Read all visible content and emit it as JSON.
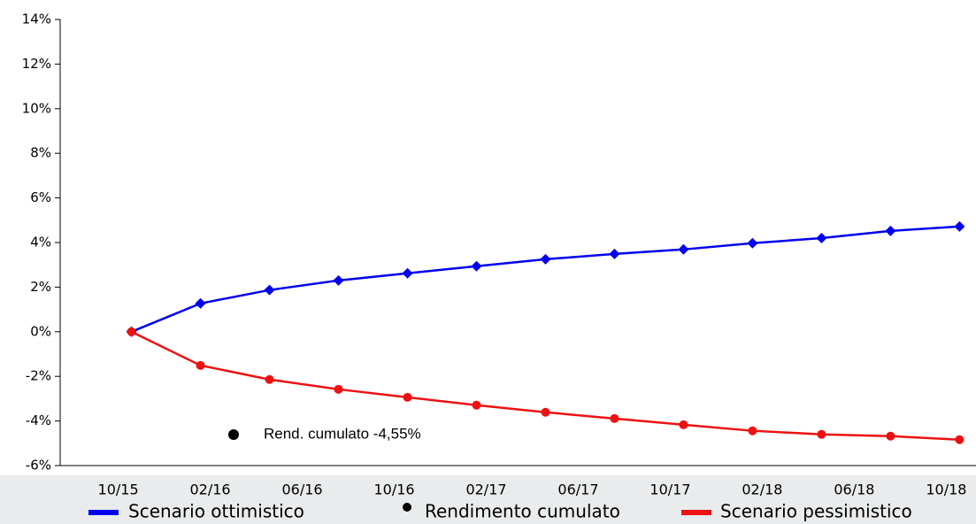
{
  "chart_data": {
    "type": "line",
    "x": [
      0,
      3,
      6,
      9,
      12,
      15,
      18,
      21,
      24,
      27,
      30,
      33,
      36
    ],
    "xlim": [
      -3.1,
      36.6
    ],
    "xticks": [
      {
        "value": 0,
        "label": "10/15"
      },
      {
        "value": 4,
        "label": "02/16"
      },
      {
        "value": 8,
        "label": "06/16"
      },
      {
        "value": 12,
        "label": "10/16"
      },
      {
        "value": 16,
        "label": "02/17"
      },
      {
        "value": 20,
        "label": "06/17"
      },
      {
        "value": 24,
        "label": "10/17"
      },
      {
        "value": 28,
        "label": "02/18"
      },
      {
        "value": 32,
        "label": "06/18"
      },
      {
        "value": 36,
        "label": "10/18"
      }
    ],
    "ylim": [
      -6,
      14
    ],
    "yticks": [
      {
        "value": -6,
        "label": "-6%"
      },
      {
        "value": -4,
        "label": "-4%"
      },
      {
        "value": -2,
        "label": "-2%"
      },
      {
        "value": 0,
        "label": "0%"
      },
      {
        "value": 2,
        "label": "2%"
      },
      {
        "value": 4,
        "label": "4%"
      },
      {
        "value": 6,
        "label": "6%"
      },
      {
        "value": 8,
        "label": "8%"
      },
      {
        "value": 10,
        "label": "10%"
      },
      {
        "value": 12,
        "label": "12%"
      },
      {
        "value": 14,
        "label": "14%"
      }
    ],
    "series": [
      {
        "name": "Scenario  ottimistico",
        "color": "#0000ee",
        "marker": "diamond",
        "values": [
          0,
          1.27,
          1.87,
          2.3,
          2.62,
          2.94,
          3.25,
          3.49,
          3.69,
          3.97,
          4.2,
          4.52,
          4.72
        ]
      },
      {
        "name": "Scenario pessimistico",
        "color": "#ee1111",
        "marker": "circle",
        "values": [
          0,
          -1.51,
          -2.14,
          -2.58,
          -2.94,
          -3.29,
          -3.61,
          -3.89,
          -4.17,
          -4.44,
          -4.6,
          -4.68,
          -4.84
        ]
      }
    ],
    "legend_point": {
      "name": "Rendimento cumulato",
      "color": "#000000"
    },
    "annotation": {
      "text": "Rend. cumulato -4,55%"
    }
  }
}
